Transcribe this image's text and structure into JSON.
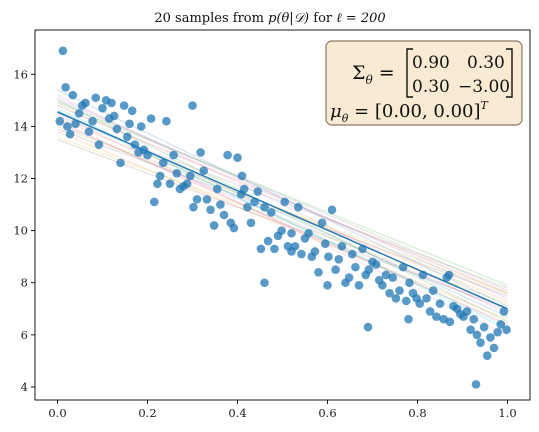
{
  "chart_data": {
    "type": "scatter",
    "title_prefix": "20 samples from ",
    "title_math": "p(θ|𝒟)",
    "title_mid": " for ",
    "title_ell": "ℓ = 200",
    "xlabel": "",
    "ylabel": "",
    "xlim": [
      -0.05,
      1.05
    ],
    "ylim": [
      3.5,
      17.7
    ],
    "x_ticks": [
      "0.0",
      "0.2",
      "0.4",
      "0.6",
      "0.8",
      "1.0"
    ],
    "y_ticks": [
      "4",
      "6",
      "8",
      "10",
      "12",
      "14",
      "16"
    ],
    "grid": false,
    "annotation": {
      "sigma_label": "Σ",
      "sigma_sub": "θ",
      "matrix": [
        [
          "0.90",
          "0.30"
        ],
        [
          "0.30",
          "−3.00"
        ]
      ],
      "mu_label": "μ",
      "mu_sub": "θ",
      "mu_value": "[0.00, 0.00]",
      "mu_sup": "T",
      "box_fill": "#f8ead3",
      "box_edge": "#8a7a66"
    },
    "fit_line": {
      "x": [
        0.0,
        1.0
      ],
      "y": [
        14.55,
        7.0
      ],
      "color": "#1f77b4"
    },
    "sample_lines": [
      {
        "y0": 14.6,
        "y1": 6.7,
        "color": "#1f77b4"
      },
      {
        "y0": 14.3,
        "y1": 7.3,
        "color": "#ff7f0e"
      },
      {
        "y0": 15.0,
        "y1": 6.5,
        "color": "#2ca02c"
      },
      {
        "y0": 14.8,
        "y1": 7.6,
        "color": "#d62728"
      },
      {
        "y0": 14.1,
        "y1": 6.9,
        "color": "#9467bd"
      },
      {
        "y0": 13.9,
        "y1": 7.5,
        "color": "#8c564b"
      },
      {
        "y0": 15.2,
        "y1": 6.8,
        "color": "#e377c2"
      },
      {
        "y0": 14.4,
        "y1": 7.8,
        "color": "#7f7f7f"
      },
      {
        "y0": 13.6,
        "y1": 7.2,
        "color": "#bcbd22"
      },
      {
        "y0": 14.7,
        "y1": 6.2,
        "color": "#17becf"
      },
      {
        "y0": 15.4,
        "y1": 7.1,
        "color": "#1f77b4"
      },
      {
        "y0": 13.8,
        "y1": 6.6,
        "color": "#ff7f0e"
      },
      {
        "y0": 14.9,
        "y1": 7.9,
        "color": "#2ca02c"
      },
      {
        "y0": 14.2,
        "y1": 6.4,
        "color": "#d62728"
      },
      {
        "y0": 15.1,
        "y1": 7.4,
        "color": "#9467bd"
      },
      {
        "y0": 13.5,
        "y1": 7.0,
        "color": "#8c564b"
      },
      {
        "y0": 14.5,
        "y1": 6.0,
        "color": "#e377c2"
      },
      {
        "y0": 15.0,
        "y1": 7.7,
        "color": "#7f7f7f"
      },
      {
        "y0": 14.0,
        "y1": 7.6,
        "color": "#bcbd22"
      },
      {
        "y0": 14.6,
        "y1": 6.3,
        "color": "#17becf"
      }
    ],
    "points": {
      "color": "#1f77b4",
      "x": [
        0.005,
        0.012,
        0.018,
        0.022,
        0.028,
        0.034,
        0.04,
        0.048,
        0.055,
        0.062,
        0.07,
        0.078,
        0.085,
        0.092,
        0.1,
        0.108,
        0.115,
        0.12,
        0.126,
        0.132,
        0.14,
        0.148,
        0.155,
        0.16,
        0.166,
        0.172,
        0.18,
        0.186,
        0.192,
        0.2,
        0.208,
        0.215,
        0.222,
        0.228,
        0.235,
        0.242,
        0.25,
        0.258,
        0.265,
        0.272,
        0.28,
        0.288,
        0.295,
        0.302,
        0.31,
        0.318,
        0.325,
        0.332,
        0.34,
        0.348,
        0.355,
        0.362,
        0.37,
        0.378,
        0.385,
        0.392,
        0.4,
        0.408,
        0.415,
        0.422,
        0.43,
        0.438,
        0.445,
        0.452,
        0.46,
        0.468,
        0.475,
        0.482,
        0.49,
        0.498,
        0.505,
        0.512,
        0.52,
        0.528,
        0.535,
        0.542,
        0.55,
        0.558,
        0.565,
        0.572,
        0.58,
        0.588,
        0.595,
        0.602,
        0.61,
        0.618,
        0.625,
        0.632,
        0.64,
        0.648,
        0.655,
        0.662,
        0.67,
        0.678,
        0.685,
        0.692,
        0.7,
        0.708,
        0.715,
        0.722,
        0.73,
        0.738,
        0.745,
        0.752,
        0.76,
        0.768,
        0.775,
        0.782,
        0.79,
        0.798,
        0.805,
        0.812,
        0.82,
        0.828,
        0.835,
        0.842,
        0.85,
        0.858,
        0.865,
        0.872,
        0.88,
        0.888,
        0.895,
        0.902,
        0.91,
        0.918,
        0.925,
        0.932,
        0.94,
        0.948,
        0.955,
        0.962,
        0.97,
        0.978,
        0.985,
        0.992,
        0.998,
        0.3,
        0.41,
        0.46,
        0.52,
        0.6,
        0.69,
        0.78,
        0.87,
        0.93
      ],
      "y": [
        14.2,
        16.9,
        15.5,
        14.0,
        13.7,
        15.2,
        14.1,
        14.5,
        14.8,
        14.9,
        13.8,
        14.2,
        15.1,
        13.3,
        14.7,
        15.0,
        14.3,
        14.9,
        14.4,
        13.9,
        12.6,
        14.8,
        13.6,
        14.1,
        14.6,
        13.3,
        13.0,
        14.0,
        13.1,
        12.9,
        14.3,
        11.1,
        11.8,
        12.1,
        12.6,
        14.2,
        11.8,
        12.9,
        12.2,
        11.6,
        11.7,
        11.8,
        12.1,
        10.9,
        11.2,
        13.0,
        12.3,
        11.2,
        10.8,
        10.2,
        11.6,
        11.0,
        10.6,
        12.9,
        10.3,
        10.1,
        12.8,
        11.4,
        11.6,
        10.9,
        10.3,
        11.1,
        11.5,
        9.3,
        10.9,
        9.6,
        10.7,
        9.3,
        9.8,
        10.0,
        11.1,
        9.4,
        9.9,
        9.4,
        10.9,
        9.1,
        9.7,
        9.9,
        9.0,
        9.2,
        8.4,
        10.3,
        9.5,
        9.0,
        10.8,
        8.5,
        8.9,
        9.4,
        8.0,
        8.2,
        9.1,
        8.6,
        7.9,
        9.3,
        8.3,
        8.5,
        8.8,
        8.7,
        8.1,
        7.9,
        8.3,
        7.6,
        8.2,
        7.4,
        7.7,
        8.6,
        7.3,
        8.0,
        7.6,
        7.4,
        7.2,
        8.3,
        7.4,
        6.9,
        7.7,
        6.7,
        7.2,
        6.6,
        8.2,
        6.5,
        7.1,
        7.0,
        6.8,
        6.7,
        6.9,
        6.2,
        6.6,
        6.0,
        5.7,
        6.3,
        5.2,
        5.9,
        5.5,
        6.1,
        6.4,
        6.9,
        6.2,
        14.8,
        12.1,
        8.0,
        9.2,
        7.9,
        6.3,
        6.6,
        8.3,
        4.1
      ]
    }
  }
}
